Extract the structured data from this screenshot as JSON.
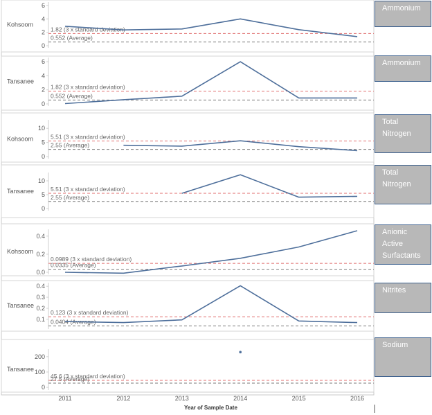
{
  "chart_data": {
    "type": "line",
    "xlabel": "Year of Sample Date",
    "x_ticks": [
      "2011",
      "2012",
      "2013",
      "2014",
      "2015",
      "2016"
    ],
    "panels": [
      {
        "row_label": "Kohsoom",
        "tag": "Ammonium",
        "y_ticks": [
          0,
          2,
          4,
          6
        ],
        "ylim": [
          0,
          6.3
        ],
        "series": [
          {
            "x": [
              2011,
              2012,
              2013,
              2014,
              2015,
              2016
            ],
            "y": [
              2.9,
              2.35,
              2.5,
              4.0,
              2.4,
              1.35
            ]
          }
        ],
        "stddev_value": 1.82,
        "stddev_label": "1.82 (3 x standard deviation)",
        "average_value": 0.552,
        "average_label": "0.552 (Average)"
      },
      {
        "row_label": "Tansanee",
        "tag": "Ammonium",
        "y_ticks": [
          0,
          2,
          4,
          6
        ],
        "ylim": [
          0,
          6.4
        ],
        "series": [
          {
            "x": [
              2011,
              2012,
              2013,
              2014,
              2015,
              2016
            ],
            "y": [
              0.05,
              0.6,
              1.1,
              6.0,
              0.85,
              0.85
            ]
          }
        ],
        "stddev_value": 1.82,
        "stddev_label": "1.82 (3 x standard deviation)",
        "average_value": 0.552,
        "average_label": "0.552 (Average)"
      },
      {
        "row_label": "Kohsoom",
        "tag": "Total Nitrogen",
        "y_ticks": [
          0,
          5,
          10
        ],
        "ylim": [
          0,
          12.5
        ],
        "series": [
          {
            "x": [
              2012,
              2013,
              2014,
              2015,
              2016
            ],
            "y": [
              4.0,
              3.7,
              5.6,
              3.5,
              2.1
            ]
          }
        ],
        "stddev_value": 5.51,
        "stddev_label": "5.51 (3 x standard deviation)",
        "average_value": 2.55,
        "average_label": "2.55 (Average)"
      },
      {
        "row_label": "Tansanee",
        "tag": "Total Nitrogen",
        "y_ticks": [
          0,
          5,
          10
        ],
        "ylim": [
          0,
          12.5
        ],
        "series": [
          {
            "x": [
              2013,
              2014,
              2015,
              2016
            ],
            "y": [
              5.5,
              12.2,
              4.1,
              4.4
            ]
          }
        ],
        "stddev_value": 5.51,
        "stddev_label": "5.51 (3 x standard deviation)",
        "average_value": 2.55,
        "average_label": "2.55 (Average)"
      },
      {
        "row_label": "Kohsoom",
        "tag": "Anionic Active Surfactants",
        "y_ticks": [
          0.0,
          0.2,
          0.4
        ],
        "ylim": [
          0,
          0.46
        ],
        "series": [
          {
            "x": [
              2011,
              2012,
              2013,
              2014,
              2015,
              2016
            ],
            "y": [
              0.0,
              -0.01,
              0.07,
              0.155,
              0.28,
              0.46
            ]
          }
        ],
        "stddev_value": 0.0989,
        "stddev_label": "0.0989 (3 x standard deviation)",
        "average_value": 0.0335,
        "average_label": "0.0335 (Average)"
      },
      {
        "row_label": "Tansanee",
        "tag": "Nitrites",
        "y_ticks": [
          0.1,
          0.2,
          0.3,
          0.4
        ],
        "ylim": [
          0.03,
          0.42
        ],
        "series": [
          {
            "x": [
              2011,
              2012,
              2013,
              2014,
              2015,
              2016
            ],
            "y": [
              0.08,
              0.07,
              0.095,
              0.405,
              0.085,
              0.07
            ]
          }
        ],
        "stddev_value": 0.123,
        "stddev_label": "0.123 (3 x standard deviation)",
        "average_value": 0.0404,
        "average_label": "0.0404 (Average)"
      },
      {
        "row_label": "Tansanee",
        "tag": "Sodium",
        "y_ticks": [
          0,
          100,
          200
        ],
        "ylim": [
          -4,
          240
        ],
        "series": [
          {
            "x": [
              2014
            ],
            "y": [
              230
            ]
          }
        ],
        "stddev_value": 45.6,
        "stddev_label": "45.6 (3 x standard deviation)",
        "average_value": 27.5,
        "average_label": "27.5 (Average)"
      }
    ],
    "colors": {
      "line": "#4e6f9b",
      "stddev": "#e06c6c",
      "average": "#7a7a7a",
      "tag_bg": "#b8b8b8",
      "tag_border": "#3b5f8d"
    }
  }
}
